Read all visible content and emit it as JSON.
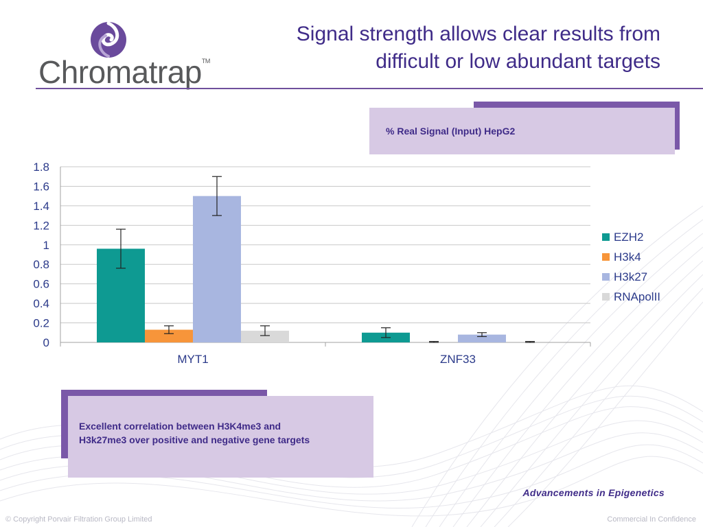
{
  "logo": {
    "text": "Chromatrap",
    "trademark": "TM"
  },
  "title": {
    "line1": "Signal strength allows clear results from",
    "line2": "difficult or low abundant targets"
  },
  "chart_label_box": {
    "text": "% Real Signal (Input) HepG2"
  },
  "chart_data": {
    "type": "bar",
    "categories": [
      "MYT1",
      "ZNF33"
    ],
    "series": [
      {
        "name": "EZH2",
        "color": "#0e9a92",
        "values": [
          0.96,
          0.1
        ],
        "errors": [
          0.2,
          0.05
        ]
      },
      {
        "name": "H3k4",
        "color": "#f7953a",
        "values": [
          0.13,
          0.0
        ],
        "errors": [
          0.04,
          0.01
        ]
      },
      {
        "name": "H3k27",
        "color": "#a8b6e0",
        "values": [
          1.5,
          0.08
        ],
        "errors": [
          0.2,
          0.02
        ]
      },
      {
        "name": "RNApolII",
        "color": "#d9d9d9",
        "values": [
          0.12,
          0.0
        ],
        "errors": [
          0.05,
          0.01
        ]
      }
    ],
    "ylim": [
      0,
      1.8
    ],
    "yticks": [
      "0",
      "0.2",
      "0.4",
      "0.6",
      "0.8",
      "1",
      "1.2",
      "1.4",
      "1.6",
      "1.8"
    ],
    "grid": true,
    "legend_position": "right",
    "text_color": "#2b3a8a"
  },
  "conclusion_box": {
    "line1": "Excellent correlation between H3K4me3 and",
    "line2": "H3k27me3 over positive and negative gene targets"
  },
  "tagline": "Advancements in Epigenetics",
  "footer": {
    "left": "© Copyright Porvair Filtration Group Limited",
    "right": "Commercial In Confidence"
  }
}
